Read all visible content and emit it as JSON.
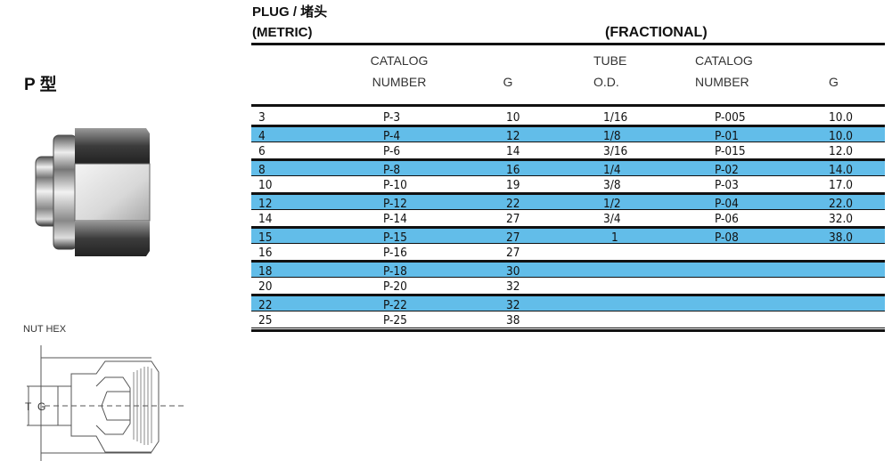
{
  "product_type": "P 型",
  "title": "PLUG / 堵头",
  "sections": {
    "metric": "(METRIC)",
    "fractional": "(FRACTIONAL)"
  },
  "headers": {
    "catalog_line1": "CATALOG",
    "catalog_line2": "NUMBER",
    "g": "G",
    "tube_line1": "TUBE",
    "tube_line2": "O.D."
  },
  "row_highlight_color": "#62bde9",
  "rows": [
    {
      "size": "3",
      "catalog": "P-3",
      "g": "10",
      "tube_od": "1/16",
      "frac_catalog": "P-005",
      "frac_g": "10.0"
    },
    {
      "size": "4",
      "catalog": "P-4",
      "g": "12",
      "tube_od": "1/8",
      "frac_catalog": "P-01",
      "frac_g": "10.0"
    },
    {
      "size": "6",
      "catalog": "P-6",
      "g": "14",
      "tube_od": "3/16",
      "frac_catalog": "P-015",
      "frac_g": "12.0"
    },
    {
      "size": "8",
      "catalog": "P-8",
      "g": "16",
      "tube_od": "1/4",
      "frac_catalog": "P-02",
      "frac_g": "14.0"
    },
    {
      "size": "10",
      "catalog": "P-10",
      "g": "19",
      "tube_od": "3/8",
      "frac_catalog": "P-03",
      "frac_g": "17.0"
    },
    {
      "size": "12",
      "catalog": "P-12",
      "g": "22",
      "tube_od": "1/2",
      "frac_catalog": "P-04",
      "frac_g": "22.0"
    },
    {
      "size": "14",
      "catalog": "P-14",
      "g": "27",
      "tube_od": "3/4",
      "frac_catalog": "P-06",
      "frac_g": "32.0"
    },
    {
      "size": "15",
      "catalog": "P-15",
      "g": "27",
      "tube_od": "1",
      "frac_catalog": "P-08",
      "frac_g": "38.0"
    },
    {
      "size": "16",
      "catalog": "P-16",
      "g": "27",
      "tube_od": "",
      "frac_catalog": "",
      "frac_g": ""
    },
    {
      "size": "18",
      "catalog": "P-18",
      "g": "30",
      "tube_od": "",
      "frac_catalog": "",
      "frac_g": ""
    },
    {
      "size": "20",
      "catalog": "P-20",
      "g": "32",
      "tube_od": "",
      "frac_catalog": "",
      "frac_g": ""
    },
    {
      "size": "22",
      "catalog": "P-22",
      "g": "32",
      "tube_od": "",
      "frac_catalog": "",
      "frac_g": ""
    },
    {
      "size": "25",
      "catalog": "P-25",
      "g": "38",
      "tube_od": "",
      "frac_catalog": "",
      "frac_g": ""
    }
  ],
  "drawing": {
    "nut_hex_label": "NUT HEX",
    "t_label": "T",
    "g_label": "G"
  }
}
